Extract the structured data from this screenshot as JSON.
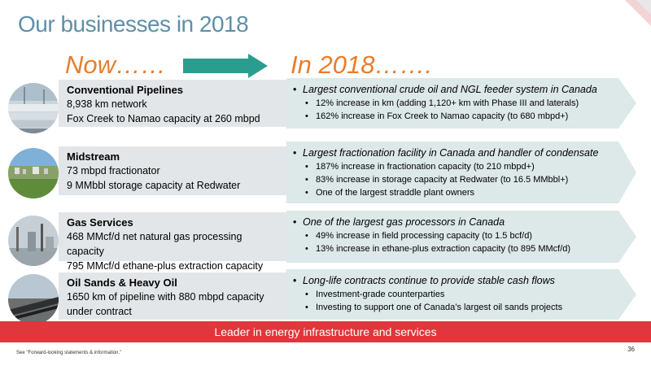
{
  "title": "Our businesses in 2018",
  "now_label": "Now……",
  "in2018_label": "In 2018…….",
  "rows": [
    {
      "heading": "Conventional Pipelines",
      "lines": [
        "8,938 km network",
        "Fox Creek to Namao capacity at 260 mbpd"
      ],
      "main": "Largest conventional crude oil and NGL feeder system in Canada",
      "subs": [
        "12% increase in km (adding 1,120+ km with Phase III and laterals)",
        "162% increase in Fox Creek to Namao capacity (to 680 mbpd+)"
      ]
    },
    {
      "heading": "Midstream",
      "lines": [
        "73 mbpd fractionator",
        "9 MMbbl storage capacity at Redwater"
      ],
      "main": "Largest fractionation facility in Canada and handler of condensate",
      "subs": [
        "187% increase in fractionation capacity (to 210 mbpd+)",
        "83% increase in storage capacity at Redwater (to 16.5 MMbbl+)",
        "One of the largest straddle plant owners"
      ]
    },
    {
      "heading": "Gas Services",
      "lines": [
        "468 MMcf/d net natural gas processing capacity",
        "795 MMcf/d ethane-plus extraction capacity"
      ],
      "main": "One of the largest gas processors in Canada",
      "subs": [
        "49% increase in field processing capacity (to 1.5 bcf/d)",
        "13% increase in ethane-plus extraction capacity (to 895 MMcf/d)"
      ]
    },
    {
      "heading": "Oil Sands & Heavy Oil",
      "lines": [
        "1650 km of pipeline with 880 mbpd capacity under contract"
      ],
      "main": "Long-life contracts continue to provide stable cash flows",
      "subs": [
        "Investment-grade counterparties",
        "Investing to support one of Canada’s largest oil sands projects"
      ]
    }
  ],
  "footer_banner": "Leader in energy infrastructure and services",
  "footnote": "See \"Forward-looking statements & information.\"",
  "page_number": "36",
  "colors": {
    "title": "#5f8fa8",
    "accent_orange": "#e97d2b",
    "arrow_teal": "#2a9d8f",
    "left_box": "#e3e6e8",
    "right_arrow": "#dde8e8",
    "banner_red": "#e0363c"
  }
}
